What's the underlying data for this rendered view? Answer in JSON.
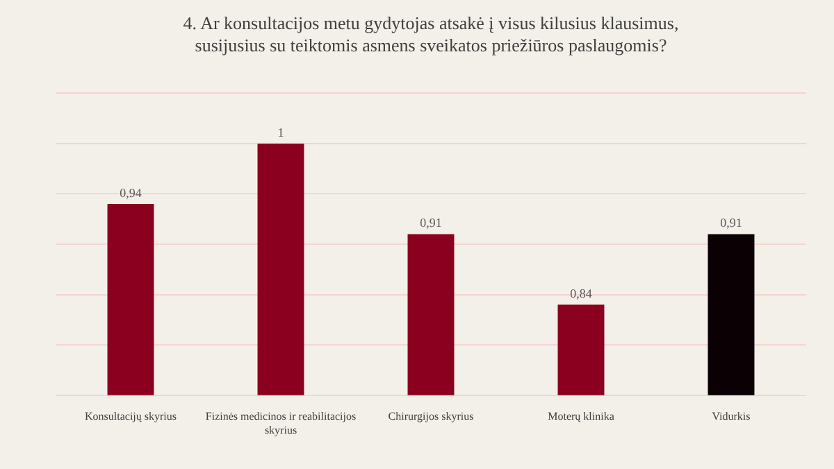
{
  "chart_data": {
    "type": "bar",
    "title": "4. Ar konsultacijos metu gydytojas atsakė į visus kilusius klausimus, susijusius su teiktomis asmens sveikatos priežiūros paslaugomis?",
    "categories": [
      "Konsultacijų skyrius",
      "Fizinės medicinos ir reabilitacijos skyrius",
      "Chirurgijos skyrius",
      "Moterų klinika",
      "Vidurkis"
    ],
    "values": [
      0.94,
      1,
      0.91,
      0.84,
      0.91
    ],
    "colors": [
      "#8b001e",
      "#8b001e",
      "#8b001e",
      "#8b001e",
      "#0b0004"
    ],
    "value_labels": [
      "0,94",
      "1",
      "0,91",
      "0,84",
      "0,91"
    ],
    "ylim": [
      0.75,
      1.05
    ],
    "yticks": [
      {
        "value": 0.75,
        "label": null
      },
      {
        "value": 0.8,
        "label": null
      },
      {
        "value": 0.85,
        "label": null
      },
      {
        "value": 0.9,
        "label": null
      },
      {
        "value": 0.95,
        "label": null
      },
      {
        "value": 1,
        "label": null
      },
      {
        "value": 1.05,
        "label": null
      }
    ],
    "grid": "y",
    "legend": false
  }
}
